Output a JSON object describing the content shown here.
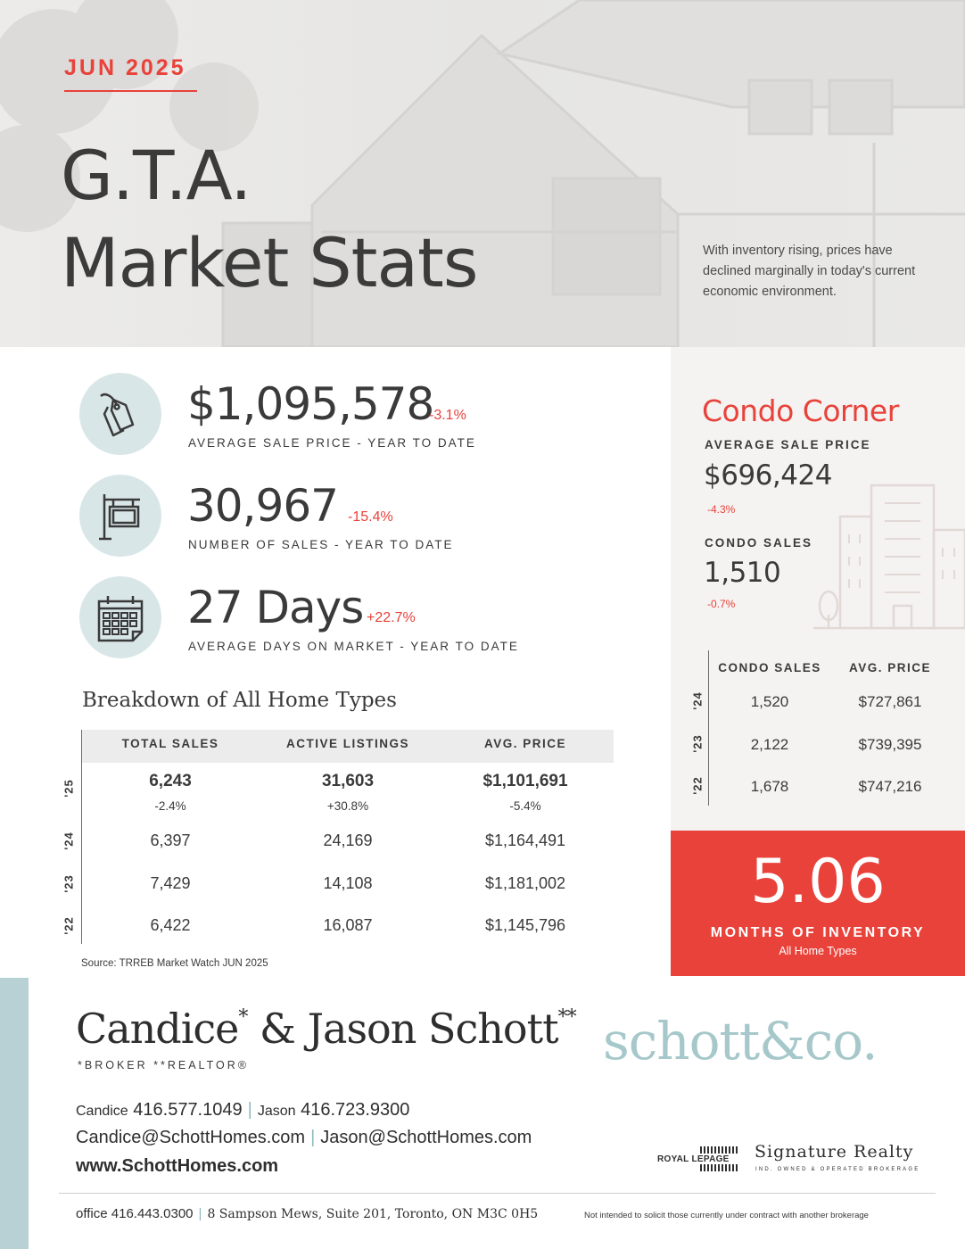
{
  "header": {
    "month": "JUN 2025",
    "title_line1": "G.T.A.",
    "title_line2": "Market Stats",
    "tagline": "With inventory rising, prices have declined marginally in today's current economic environment."
  },
  "stats": [
    {
      "value": "$1,095,578",
      "change": "-3.1%",
      "label": "AVERAGE SALE PRICE - YEAR TO DATE",
      "icon": "price-tag-icon"
    },
    {
      "value": "30,967",
      "change": "-15.4%",
      "label": "NUMBER OF SALES - YEAR TO DATE",
      "icon": "sale-sign-icon"
    },
    {
      "value": "27 Days",
      "change": "+22.7%",
      "label": "AVERAGE DAYS ON MARKET - YEAR TO DATE",
      "icon": "calendar-icon"
    }
  ],
  "breakdown": {
    "title": "Breakdown of All Home Types",
    "columns": [
      "TOTAL SALES",
      "ACTIVE LISTINGS",
      "AVG. PRICE"
    ],
    "rows": [
      {
        "year": "'25",
        "total_sales": "6,243",
        "total_sales_change": "-2.4%",
        "active_listings": "31,603",
        "active_listings_change": "+30.8%",
        "avg_price": "$1,101,691",
        "avg_price_change": "-5.4%"
      },
      {
        "year": "'24",
        "total_sales": "6,397",
        "active_listings": "24,169",
        "avg_price": "$1,164,491"
      },
      {
        "year": "'23",
        "total_sales": "7,429",
        "active_listings": "14,108",
        "avg_price": "$1,181,002"
      },
      {
        "year": "'22",
        "total_sales": "6,422",
        "active_listings": "16,087",
        "avg_price": "$1,145,796"
      }
    ],
    "source": "Source: TRREB Market Watch JUN 2025"
  },
  "condo": {
    "title": "Condo Corner",
    "avg_price_label": "AVERAGE SALE PRICE",
    "avg_price": "$696,424",
    "avg_price_change": "-4.3%",
    "sales_label": "CONDO SALES",
    "sales": "1,510",
    "sales_change": "-0.7%",
    "columns": [
      "CONDO SALES",
      "AVG. PRICE"
    ],
    "rows": [
      {
        "year": "'24",
        "sales": "1,520",
        "price": "$727,861"
      },
      {
        "year": "'23",
        "sales": "2,122",
        "price": "$739,395"
      },
      {
        "year": "'22",
        "sales": "1,678",
        "price": "$747,216"
      }
    ]
  },
  "inventory": {
    "value": "5.06",
    "label": "MONTHS OF INVENTORY",
    "sub": "All Home Types"
  },
  "agent": {
    "name_a": "Candice",
    "name_a_mark": "*",
    "name_join": " & Jason Schott",
    "name_b_mark": "**",
    "credentials": "*BROKER  **REALTOR®",
    "candice_label": "Candice",
    "candice_phone": "416.577.1049",
    "jason_label": "Jason",
    "jason_phone": "416.723.9300",
    "candice_email": "Candice@SchottHomes.com",
    "jason_email": "Jason@SchottHomes.com",
    "website": "www.SchottHomes.com"
  },
  "branding": {
    "logo": "schott&co.",
    "royal_lepage": "ROYAL LEPAGE",
    "signature": "Signature Realty",
    "signature_sub": "IND. OWNED & OPERATED BROKERAGE",
    "accent_color": "#e8423a",
    "teal_color": "#a6c8cb"
  },
  "footer": {
    "office_label": "office",
    "office_phone": "416.443.0300",
    "address": "8 Sampson Mews, Suite 201, Toronto, ON M3C 0H5",
    "disclaimer": "Not intended to solicit those currently under contract with another brokerage"
  }
}
